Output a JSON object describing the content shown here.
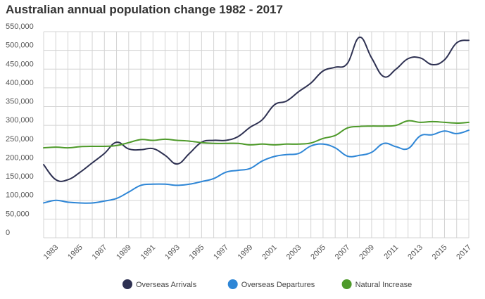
{
  "chart_data": {
    "type": "line",
    "title": "Australian annual population change 1982 - 2017",
    "x": [
      1982,
      1983,
      1984,
      1985,
      1986,
      1987,
      1988,
      1989,
      1990,
      1991,
      1992,
      1993,
      1994,
      1995,
      1996,
      1997,
      1998,
      1999,
      2000,
      2001,
      2002,
      2003,
      2004,
      2005,
      2006,
      2007,
      2008,
      2009,
      2010,
      2011,
      2012,
      2013,
      2014,
      2015,
      2016,
      2017
    ],
    "xticks": [
      "1983",
      "1985",
      "1987",
      "1989",
      "1991",
      "1993",
      "1995",
      "1997",
      "1999",
      "2001",
      "2003",
      "2005",
      "2007",
      "2009",
      "2011",
      "2013",
      "2015",
      "2017"
    ],
    "ylim": [
      0,
      550000
    ],
    "yticks": [
      "0",
      "50,000",
      "100,000",
      "150,000",
      "200,000",
      "250,000",
      "300,000",
      "350,000",
      "400,000",
      "450,000",
      "500,000",
      "550,000"
    ],
    "grid": true,
    "legend_position": "bottom",
    "series": [
      {
        "name": "Overseas Arrivals",
        "color": "#2e3152",
        "values": [
          195000,
          155000,
          155000,
          175000,
          200000,
          225000,
          255000,
          237000,
          235000,
          238000,
          220000,
          197000,
          225000,
          255000,
          260000,
          260000,
          270000,
          295000,
          315000,
          355000,
          365000,
          390000,
          413000,
          445000,
          455000,
          465000,
          535000,
          480000,
          430000,
          450000,
          478000,
          480000,
          462000,
          475000,
          520000,
          527000
        ]
      },
      {
        "name": "Overseas Departures",
        "color": "#2e86d6",
        "values": [
          93000,
          100000,
          95000,
          93000,
          93000,
          98000,
          105000,
          122000,
          140000,
          143000,
          143000,
          140000,
          143000,
          150000,
          158000,
          175000,
          180000,
          185000,
          205000,
          217000,
          222000,
          225000,
          245000,
          250000,
          240000,
          218000,
          220000,
          228000,
          252000,
          243000,
          238000,
          272000,
          275000,
          285000,
          278000,
          287000
        ]
      },
      {
        "name": "Natural Increase",
        "color": "#4e9a2a",
        "values": [
          240000,
          242000,
          240000,
          243000,
          244000,
          244000,
          246000,
          254000,
          262000,
          260000,
          263000,
          260000,
          258000,
          254000,
          252000,
          252000,
          252000,
          248000,
          250000,
          248000,
          250000,
          250000,
          253000,
          265000,
          273000,
          293000,
          297000,
          298000,
          298000,
          300000,
          312000,
          308000,
          310000,
          308000,
          306000,
          308000
        ]
      }
    ]
  }
}
